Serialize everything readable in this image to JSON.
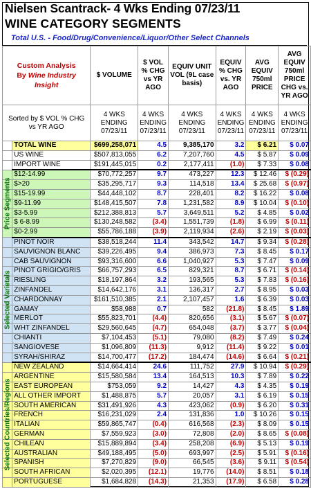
{
  "header": {
    "title_line1": "Nielsen Scantrack- 4 Wks Ending 07/23/11",
    "title_line2": "WINE CATEGORY SEGMENTS",
    "subtitle": "Total U.S. - Food/Drug/Convenience/Liquor/Other Select Channels"
  },
  "custom_analysis": {
    "line1": "Custom Analysis",
    "line2_pre": "By",
    "line2_ital": "Wine Industry",
    "line3": "Insight"
  },
  "sorted_note": "Sorted by $ VOL % CHG vs YR AGO",
  "columns": [
    "$ VOLUME",
    "$ VOL % CHG vs YR AGO",
    "EQUIV UNIT VOL (9L case basis)",
    "EQUIV % CHG vs. YR AGO",
    "AVG EQUIV 750ml PRICE",
    "AVG EQUIV 750ml PRICE CHG vs. YR AGO"
  ],
  "period_labels": [
    "4 WKS ENDING 07/23/11",
    "4 WKS ENDING 07/23/11",
    "4 WKS ENDING 07/23/11",
    "4 WKS ENDING 07/23/11",
    "4 WKS ENDING 07/23/11",
    "4 WKS ENDING 07/23/11",
    "4 WKS ENDING 07/23/11"
  ],
  "group_labels": {
    "price": "Price Segments",
    "varietals": "Selected Varietals",
    "countries": "Selected Countries/Regions"
  },
  "colors": {
    "negative": "#c00000",
    "positive": "#0000c8",
    "price_bg": "#ccf7b8",
    "varietal_bg": "#cfe3f4",
    "country_bg": "#ffff9c"
  },
  "total_row": {
    "name": "TOTAL WINE",
    "volume": "$699,258,071",
    "vol_chg": "4.5",
    "units": "9,385,170",
    "unit_chg": "3.2",
    "price": "$ 6.21",
    "price_chg": "$ 0.07"
  },
  "origin_rows": [
    {
      "name": "US WINE",
      "volume": "$507,813,055",
      "vol_chg": "6.2",
      "units": "7,207,760",
      "unit_chg": "4.5",
      "price": "$ 5.87",
      "price_chg": "$ 0.09"
    },
    {
      "name": "IMPORT WINE",
      "volume": "$191,445,015",
      "vol_chg": "0.2",
      "units": "2,177,411",
      "unit_chg": "(1.0)",
      "price": "$ 7.33",
      "price_chg": "$ 0.08"
    }
  ],
  "price_rows": [
    {
      "name": "$12-14.99",
      "volume": "$70,772,257",
      "vol_chg": "9.7",
      "units": "473,227",
      "unit_chg": "12.3",
      "price": "$ 12.46",
      "price_chg": "$ (0.29)"
    },
    {
      "name": "$>20",
      "volume": "$35,295,717",
      "vol_chg": "9.3",
      "units": "114,518",
      "unit_chg": "13.4",
      "price": "$ 25.68",
      "price_chg": "$ (0.97)"
    },
    {
      "name": "$15-19.99",
      "volume": "$44,448,102",
      "vol_chg": "8.7",
      "units": "228,401",
      "unit_chg": "8.2",
      "price": "$ 16.22",
      "price_chg": "$ 0.08"
    },
    {
      "name": "$9-11.99",
      "volume": "$148,415,507",
      "vol_chg": "7.8",
      "units": "1,231,582",
      "unit_chg": "8.9",
      "price": "$ 10.04",
      "price_chg": "$ (0.10)"
    },
    {
      "name": "$3-5.99",
      "volume": "$212,388,813",
      "vol_chg": "5.7",
      "units": "3,649,511",
      "unit_chg": "5.2",
      "price": "$ 4.85",
      "price_chg": "$ 0.02"
    },
    {
      "name": "$ 6-8.99",
      "volume": "$130,248,582",
      "vol_chg": "(3.4)",
      "units": "1,551,739",
      "unit_chg": "(1.8)",
      "price": "$ 6.99",
      "price_chg": "$ (0.11)"
    },
    {
      "name": "$0-2.99",
      "volume": "$55,786,188",
      "vol_chg": "(3.9)",
      "units": "2,119,934",
      "unit_chg": "(2.6)",
      "price": "$ 2.19",
      "price_chg": "$ (0.03)"
    }
  ],
  "varietal_rows": [
    {
      "name": "PINOT NOIR",
      "volume": "$38,518,244",
      "vol_chg": "11.4",
      "units": "343,542",
      "unit_chg": "14.7",
      "price": "$ 9.34",
      "price_chg": "$ (0.28)"
    },
    {
      "name": "SAUVIGNON BLANC",
      "volume": "$39,226,495",
      "vol_chg": "9.4",
      "units": "386,973",
      "unit_chg": "7.3",
      "price": "$ 8.45",
      "price_chg": "$ 0.17"
    },
    {
      "name": "CAB SAUVIGNON",
      "volume": "$93,316,600",
      "vol_chg": "6.6",
      "units": "1,040,927",
      "unit_chg": "5.3",
      "price": "$ 7.47",
      "price_chg": "$ 0.09"
    },
    {
      "name": "PINOT GRIGIO/GRIS",
      "volume": "$66,757,293",
      "vol_chg": "6.5",
      "units": "829,321",
      "unit_chg": "8.7",
      "price": "$ 6.71",
      "price_chg": "$ (0.14)"
    },
    {
      "name": "RIESLING",
      "volume": "$18,197,864",
      "vol_chg": "3.2",
      "units": "193,565",
      "unit_chg": "5.3",
      "price": "$ 7.83",
      "price_chg": "$ (0.16)"
    },
    {
      "name": "ZINFANDEL",
      "volume": "$14,642,176",
      "vol_chg": "3.1",
      "units": "136,317",
      "unit_chg": "2.7",
      "price": "$ 8.95",
      "price_chg": "$ 0.03"
    },
    {
      "name": "CHARDONNAY",
      "volume": "$161,510,385",
      "vol_chg": "2.1",
      "units": "2,107,457",
      "unit_chg": "1.6",
      "price": "$ 6.39",
      "price_chg": "$ 0.03"
    },
    {
      "name": "GAMAY",
      "volume": "$58,988",
      "vol_chg": "0.7",
      "units": "582",
      "unit_chg": "(21.8)",
      "price": "$ 8.45",
      "price_chg": "$ 1.89"
    },
    {
      "name": "MERLOT",
      "volume": "$55,823,701",
      "vol_chg": "(4.4)",
      "units": "820,656",
      "unit_chg": "(3.1)",
      "price": "$ 5.67",
      "price_chg": "$ (0.07)"
    },
    {
      "name": "WHT ZINFANDEL",
      "volume": "$29,560,645",
      "vol_chg": "(4.7)",
      "units": "654,048",
      "unit_chg": "(3.7)",
      "price": "$ 3.77",
      "price_chg": "$ (0.04)"
    },
    {
      "name": "CHIANTI",
      "volume": "$7,104,453",
      "vol_chg": "(5.1)",
      "units": "79,080",
      "unit_chg": "(8.2)",
      "price": "$ 7.49",
      "price_chg": "$ 0.24"
    },
    {
      "name": "SANGIOVESE",
      "volume": "$1,096,809",
      "vol_chg": "(11.3)",
      "units": "9,912",
      "unit_chg": "(11.4)",
      "price": "$ 9.22",
      "price_chg": "$ 0.01"
    },
    {
      "name": "SYRAH/SHIRAZ",
      "volume": "$14,700,477",
      "vol_chg": "(17.2)",
      "units": "184,474",
      "unit_chg": "(14.6)",
      "price": "$ 6.64",
      "price_chg": "$ (0.21)"
    }
  ],
  "country_rows": [
    {
      "name": "NEW ZEALAND",
      "volume": "$14,664,414",
      "vol_chg": "24.6",
      "units": "111,752",
      "unit_chg": "27.9",
      "price": "$ 10.94",
      "price_chg": "$ (0.29)"
    },
    {
      "name": "ARGENTINE",
      "volume": "$15,580,584",
      "vol_chg": "13.4",
      "units": "164,513",
      "unit_chg": "10.3",
      "price": "$ 7.89",
      "price_chg": "$ 0.22"
    },
    {
      "name": "EAST EUROPEAN",
      "volume": "$753,059",
      "vol_chg": "9.2",
      "units": "14,427",
      "unit_chg": "4.3",
      "price": "$ 4.35",
      "price_chg": "$ 0.19"
    },
    {
      "name": "ALL OTHER IMPORT",
      "volume": "$1,488,875",
      "vol_chg": "5.7",
      "units": "20,057",
      "unit_chg": "3.1",
      "price": "$ 6.19",
      "price_chg": "$ 0.15"
    },
    {
      "name": "SOUTH AMERICAN",
      "volume": "$31,491,926",
      "vol_chg": "4.3",
      "units": "423,062",
      "unit_chg": "(0.9)",
      "price": "$ 6.20",
      "price_chg": "$ 0.31"
    },
    {
      "name": "FRENCH",
      "volume": "$16,231,029",
      "vol_chg": "2.4",
      "units": "131,836",
      "unit_chg": "1.0",
      "price": "$ 10.26",
      "price_chg": "$ 0.15"
    },
    {
      "name": "ITALIAN",
      "volume": "$59,865,747",
      "vol_chg": "(0.4)",
      "units": "616,568",
      "unit_chg": "(2.3)",
      "price": "$ 8.09",
      "price_chg": "$ 0.15"
    },
    {
      "name": "GERMAN",
      "volume": "$7,559,923",
      "vol_chg": "(3.0)",
      "units": "72,808",
      "unit_chg": "(2.0)",
      "price": "$ 8.65",
      "price_chg": "$ (0.08)"
    },
    {
      "name": "CHILEAN",
      "volume": "$15,889,894",
      "vol_chg": "(3.4)",
      "units": "258,208",
      "unit_chg": "(6.9)",
      "price": "$ 5.13",
      "price_chg": "$ 0.19"
    },
    {
      "name": "AUSTRALIAN",
      "volume": "$49,188,495",
      "vol_chg": "(5.0)",
      "units": "693,997",
      "unit_chg": "(2.5)",
      "price": "$ 5.91",
      "price_chg": "$ (0.16)"
    },
    {
      "name": "SPANISH",
      "volume": "$7,270,829",
      "vol_chg": "(9.0)",
      "units": "66,545",
      "unit_chg": "(3.6)",
      "price": "$ 9.11",
      "price_chg": "$ (0.54)"
    },
    {
      "name": "SOUTH AFRICAN",
      "volume": "$2,020,395",
      "vol_chg": "(12.1)",
      "units": "19,776",
      "unit_chg": "(14.0)",
      "price": "$ 8.51",
      "price_chg": "$ 0.18"
    },
    {
      "name": "PORTUGUESE",
      "volume": "$1,684,828",
      "vol_chg": "(14.3)",
      "units": "21,353",
      "unit_chg": "(17.9)",
      "price": "$ 6.58",
      "price_chg": "$ 0.28"
    }
  ]
}
